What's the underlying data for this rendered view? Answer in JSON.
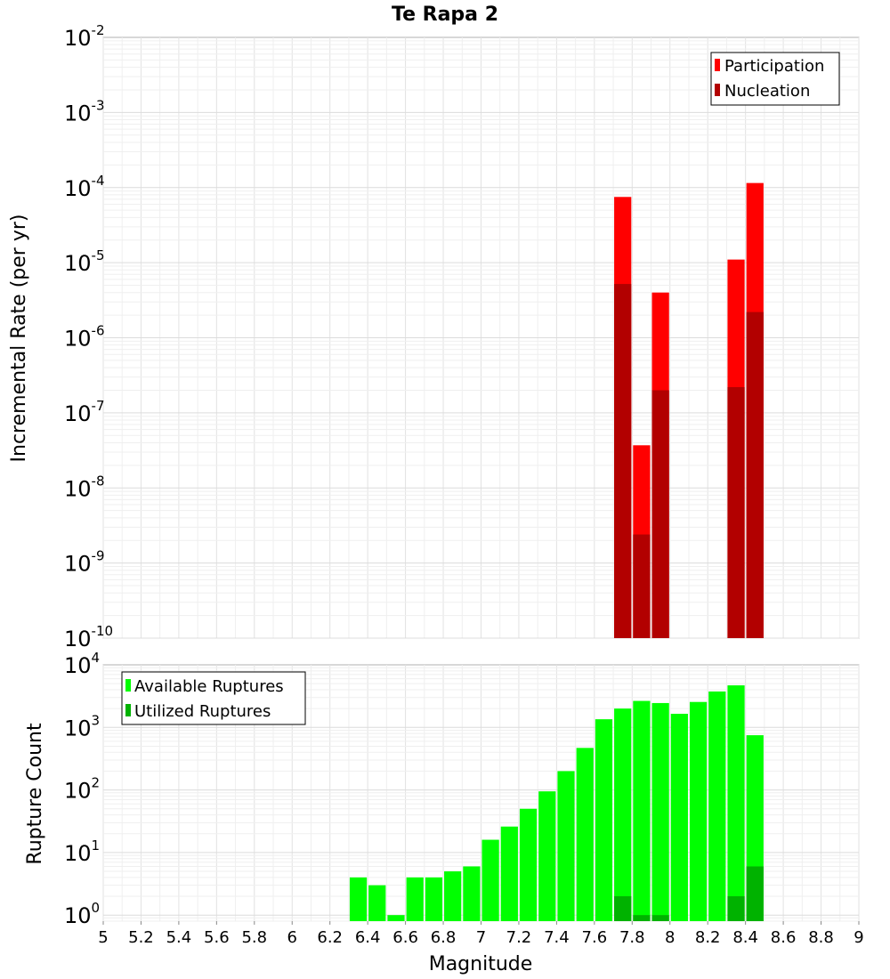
{
  "chart_data": [
    {
      "type": "bar",
      "scale": "log",
      "title": "Te Rapa 2",
      "xlabel": "",
      "ylabel": "Incremental Rate (per yr)",
      "xlim": [
        5,
        9
      ],
      "ylim": [
        1e-10,
        0.01
      ],
      "y_ticks": [
        {
          "base": "10",
          "exp": "-2"
        },
        {
          "base": "10",
          "exp": "-3"
        },
        {
          "base": "10",
          "exp": "-4"
        },
        {
          "base": "10",
          "exp": "-5"
        },
        {
          "base": "10",
          "exp": "-6"
        },
        {
          "base": "10",
          "exp": "-7"
        },
        {
          "base": "10",
          "exp": "-8"
        },
        {
          "base": "10",
          "exp": "-9"
        },
        {
          "base": "10",
          "exp": "-10"
        }
      ],
      "legend_position": "top-right",
      "bin_width": 0.1,
      "series": [
        {
          "name": "Participation",
          "color": "#ff0000",
          "x": [
            7.75,
            7.85,
            7.95,
            8.35,
            8.45
          ],
          "values": [
            7.5e-05,
            3.7e-08,
            4e-06,
            1.1e-05,
            0.000115
          ]
        },
        {
          "name": "Nucleation",
          "color": "#b20000",
          "x": [
            7.75,
            7.85,
            7.95,
            8.35,
            8.45
          ],
          "values": [
            5.2e-06,
            2.4e-09,
            2e-07,
            2.2e-07,
            2.2e-06
          ]
        }
      ]
    },
    {
      "type": "bar",
      "scale": "log",
      "title": "",
      "xlabel": "Magnitude",
      "ylabel": "Rupture Count",
      "xlim": [
        5,
        9
      ],
      "ylim": [
        0.8,
        10000
      ],
      "x_ticks": [
        "5",
        "5.2",
        "5.4",
        "5.6",
        "5.8",
        "6",
        "6.2",
        "6.4",
        "6.6",
        "6.8",
        "7",
        "7.2",
        "7.4",
        "7.6",
        "7.8",
        "8",
        "8.2",
        "8.4",
        "8.6",
        "8.8",
        "9"
      ],
      "y_ticks": [
        {
          "base": "10",
          "exp": "4"
        },
        {
          "base": "10",
          "exp": "3"
        },
        {
          "base": "10",
          "exp": "2"
        },
        {
          "base": "10",
          "exp": "1"
        },
        {
          "base": "10",
          "exp": "0"
        }
      ],
      "legend_position": "top-left",
      "bin_width": 0.1,
      "series": [
        {
          "name": "Available Ruptures",
          "color": "#00ff00",
          "x": [
            6.35,
            6.45,
            6.55,
            6.65,
            6.75,
            6.85,
            6.95,
            7.05,
            7.15,
            7.25,
            7.35,
            7.45,
            7.55,
            7.65,
            7.75,
            7.85,
            7.95,
            8.05,
            8.15,
            8.25,
            8.35,
            8.45
          ],
          "values": [
            4,
            3,
            1,
            4,
            4,
            5,
            6,
            16,
            26,
            50,
            95,
            200,
            470,
            1350,
            2000,
            2650,
            2450,
            1650,
            2550,
            3750,
            4700,
            750
          ]
        },
        {
          "name": "Utilized Ruptures",
          "color": "#00b200",
          "x": [
            7.75,
            7.85,
            7.95,
            8.35,
            8.45
          ],
          "values": [
            2,
            1,
            1,
            2,
            6
          ]
        }
      ]
    }
  ]
}
